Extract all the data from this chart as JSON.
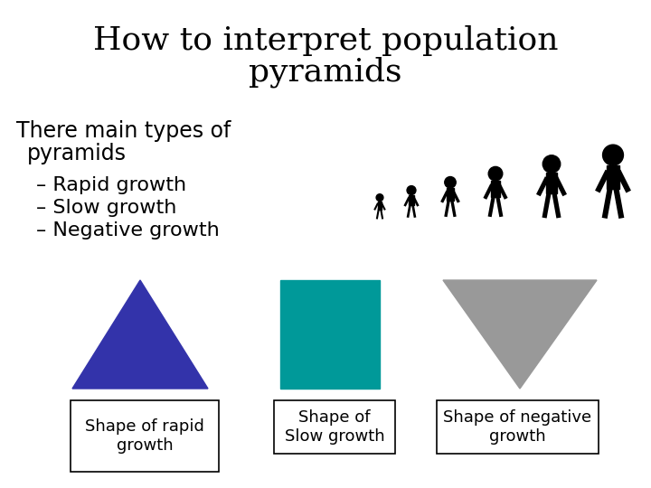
{
  "title_line1": "How to interpret population",
  "title_line2": "pyramids",
  "subtitle": "There main types of\n  pyramids",
  "bullets": [
    "– Rapid growth",
    "– Slow growth",
    "– Negative growth"
  ],
  "shape1_color": "#3333aa",
  "shape2_color": "#009999",
  "shape3_color": "#999999",
  "label1": "Shape of rapid\ngrowth",
  "label2": "Shape of\nSlow growth",
  "label3": "Shape of negative\ngrowth",
  "bg_color": "#ffffff",
  "title_fontsize": 26,
  "subtitle_fontsize": 17,
  "bullet_fontsize": 16,
  "label_fontsize": 13
}
